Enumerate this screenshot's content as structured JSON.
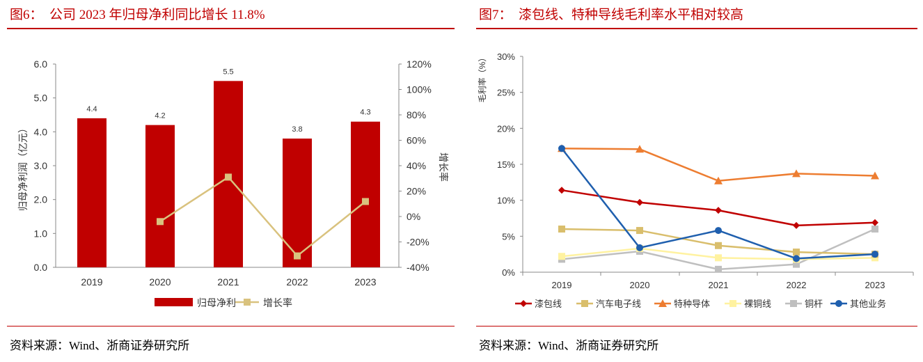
{
  "left": {
    "title": "图6：  公司 2023 年归母净利同比增长 11.8%",
    "source": "资料来源：Wind、浙商证券研究所"
  },
  "right": {
    "title": "图7：  漆包线、特种导线毛利率水平相对较高",
    "source": "资料来源：Wind、浙商证券研究所"
  },
  "chart_data": [
    {
      "type": "bar",
      "categories": [
        "2019",
        "2020",
        "2021",
        "2022",
        "2023"
      ],
      "series": [
        {
          "name": "归母净利",
          "type": "bar",
          "axis": "left",
          "color": "#c00000",
          "values": [
            4.4,
            4.2,
            5.5,
            3.8,
            4.3
          ],
          "labels": [
            "4.4",
            "4.2",
            "5.5",
            "3.8",
            "4.3"
          ]
        },
        {
          "name": "增长率",
          "type": "line",
          "axis": "right",
          "color": "#d9c27e",
          "values": [
            null,
            -4,
            31,
            -31,
            11.8
          ]
        }
      ],
      "ylabel": "归母净利润（亿元）",
      "y2label": "增长率",
      "ylim": [
        0,
        6
      ],
      "y2lim": [
        -40,
        120
      ],
      "yticks": [
        "0.0",
        "1.0",
        "2.0",
        "3.0",
        "4.0",
        "5.0",
        "6.0"
      ],
      "y2ticks": [
        "-40%",
        "-20%",
        "0%",
        "20%",
        "40%",
        "60%",
        "80%",
        "100%",
        "120%"
      ],
      "legend": "bottom"
    },
    {
      "type": "line",
      "categories": [
        "2019",
        "2020",
        "2021",
        "2022",
        "2023"
      ],
      "series": [
        {
          "name": "漆包线",
          "color": "#c00000",
          "marker": "diamond",
          "values": [
            11.4,
            9.7,
            8.6,
            6.5,
            6.9
          ]
        },
        {
          "name": "汽车电子线",
          "color": "#d9be6c",
          "marker": "square",
          "values": [
            6.0,
            5.8,
            3.7,
            2.8,
            2.5
          ]
        },
        {
          "name": "特种导体",
          "color": "#ed7d31",
          "marker": "triangle",
          "values": [
            17.2,
            17.1,
            12.7,
            13.7,
            13.4
          ]
        },
        {
          "name": "裸铜线",
          "color": "#fff2a0",
          "marker": "square",
          "values": [
            2.2,
            3.3,
            2.0,
            1.8,
            2.0
          ]
        },
        {
          "name": "铜杆",
          "color": "#bfbfbf",
          "marker": "square",
          "values": [
            1.8,
            2.9,
            0.4,
            1.1,
            6.0
          ]
        },
        {
          "name": "其他业务",
          "color": "#1f5fae",
          "marker": "circle",
          "values": [
            17.2,
            3.4,
            5.8,
            1.9,
            2.5
          ]
        }
      ],
      "ylabel": "毛利率（%）",
      "ylim": [
        0,
        30
      ],
      "yticks": [
        "0%",
        "5%",
        "10%",
        "15%",
        "20%",
        "25%",
        "30%"
      ],
      "legend": "bottom"
    }
  ]
}
